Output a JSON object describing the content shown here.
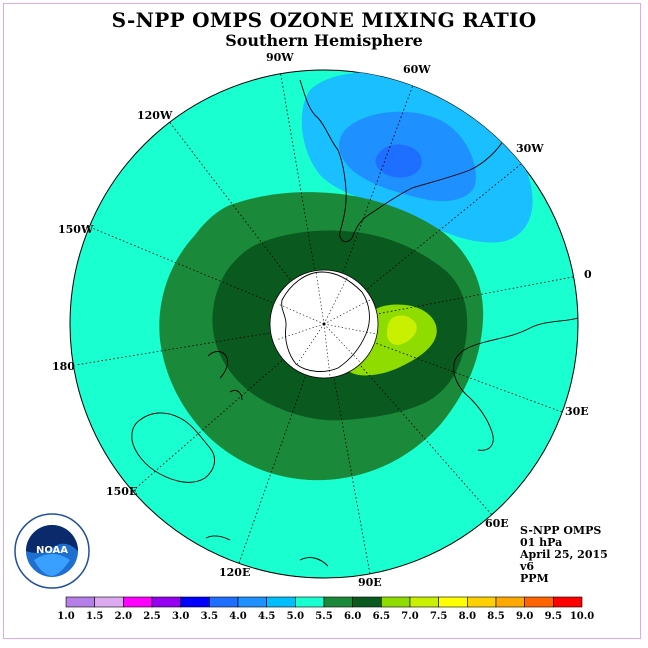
{
  "title": "S-NPP OMPS OZONE MIXING RATIO",
  "subtitle": "Southern Hemisphere",
  "longitude_labels": [
    "90W",
    "60W",
    "30W",
    "0",
    "30E",
    "60E",
    "90E",
    "120E",
    "150E",
    "180",
    "150W",
    "120W"
  ],
  "info": {
    "instrument": "S-NPP OMPS",
    "level": "01 hPa",
    "date": "April 25, 2015",
    "version": "v6",
    "units": "PPM"
  },
  "logo_text": "NOAA",
  "colorbar": {
    "ticks": [
      "1.0",
      "1.5",
      "2.0",
      "2.5",
      "3.0",
      "3.5",
      "4.0",
      "4.5",
      "5.0",
      "5.5",
      "6.0",
      "6.5",
      "7.0",
      "7.5",
      "8.0",
      "8.5",
      "9.0",
      "9.5",
      "10.0"
    ],
    "colors": [
      "#b47fe6",
      "#dcaaf0",
      "#ff00ff",
      "#9600f0",
      "#0000ff",
      "#1e6eff",
      "#1e90ff",
      "#00bfff",
      "#19ffd0",
      "#1a8a3a",
      "#0a5a20",
      "#8fdc00",
      "#c8f000",
      "#ffff00",
      "#ffd000",
      "#ffa800",
      "#ff6400",
      "#ff0000",
      "#8b5a3c"
    ]
  },
  "colors": {
    "ocean_fill": "#19ffd0",
    "band_green": "#1a8a3a",
    "band_dark_green": "#0a5a20",
    "band_lime": "#8fdc00",
    "high_light_blue": "#19bfff",
    "high_blue": "#1e90ff",
    "high_deep_blue": "#1e6eff"
  }
}
